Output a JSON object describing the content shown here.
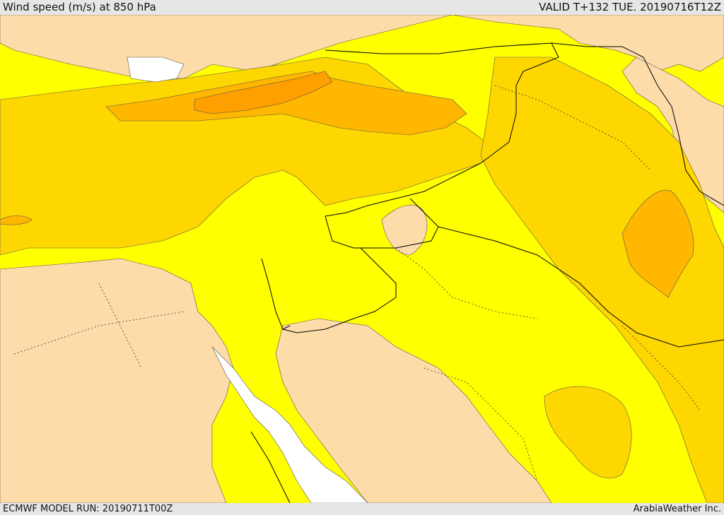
{
  "header": {
    "title": "Wind speed (m/s) at 850 hPa",
    "valid": "VALID T+132 TUE. 20190716T12Z"
  },
  "footer": {
    "model_run": "ECMWF MODEL RUN: 20190711T00Z",
    "credit": "ArabiaWeather Inc."
  },
  "colors": {
    "sea_white": "#ffffff",
    "level_peach": "#fddcaa",
    "level_yellow": "#ffff00",
    "level_gold": "#ffd700",
    "level_orange_light": "#ffb700",
    "level_orange": "#ff9f00"
  }
}
